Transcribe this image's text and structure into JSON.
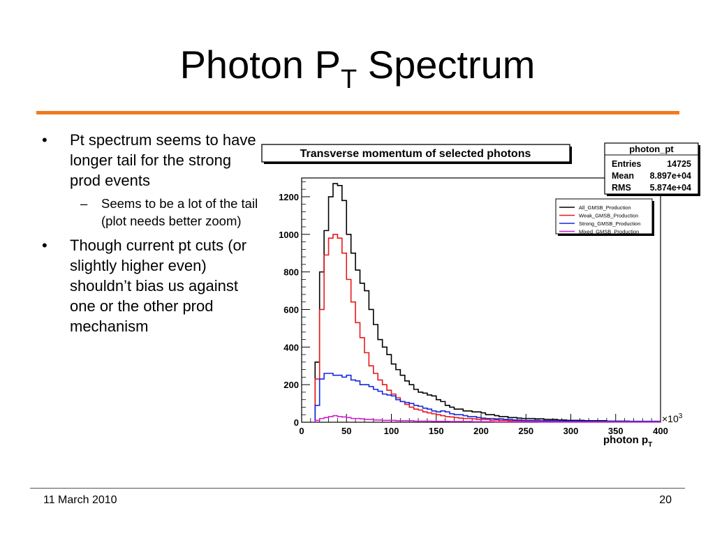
{
  "slide": {
    "title_main": "Photon P",
    "title_sub": "T",
    "title_rest": " Spectrum",
    "bullets": [
      {
        "text": "Pt spectrum seems to have longer tail for the strong prod events",
        "subs": [
          "Seems to be a lot of the tail (plot needs better zoom)"
        ]
      },
      {
        "text": "Though current pt cuts (or slightly higher even) shouldn’t bias us against one or the other prod mechanism",
        "subs": []
      }
    ],
    "footer_date": "11 March 2010",
    "footer_page": "20",
    "accent_color": "#f07a1e"
  },
  "chart_data": {
    "type": "line",
    "title": "Transverse momentum of selected photons",
    "xlabel": "photon p",
    "xlabel_sub": "T",
    "x_multiplier": "×10",
    "x_multiplier_exp": "3",
    "xlim": [
      0,
      400
    ],
    "ylim": [
      0,
      1300
    ],
    "xticks": [
      0,
      50,
      100,
      150,
      200,
      250,
      300,
      350,
      400
    ],
    "yticks": [
      0,
      200,
      400,
      600,
      800,
      1000,
      1200
    ],
    "stats": {
      "name": "photon_pt",
      "rows": [
        {
          "label": "Entries",
          "value": "14725"
        },
        {
          "label": "Mean",
          "value": "8.897e+04"
        },
        {
          "label": "RMS",
          "value": "5.874e+04"
        }
      ]
    },
    "legend_position": "top-right",
    "bin_width": 5,
    "x_start": 15,
    "series": [
      {
        "name": "All_GMSB_Production",
        "color": "#000000",
        "values": [
          320,
          800,
          1020,
          1200,
          1270,
          1260,
          1180,
          1000,
          900,
          810,
          740,
          700,
          600,
          520,
          440,
          400,
          360,
          310,
          280,
          250,
          220,
          200,
          175,
          160,
          155,
          145,
          140,
          120,
          110,
          90,
          80,
          70,
          70,
          60,
          60,
          55,
          55,
          50,
          40,
          40,
          35,
          30,
          30,
          25,
          25,
          22,
          20,
          20,
          20,
          18,
          18,
          15,
          15,
          15,
          12,
          12,
          10,
          10,
          10,
          10,
          8,
          8,
          8,
          8,
          8,
          6,
          6,
          6,
          6,
          6,
          5,
          5,
          5,
          5,
          5,
          5,
          5
        ]
      },
      {
        "name": "Weak_GMSB_Production",
        "color": "#e8181a",
        "values": [
          230,
          600,
          890,
          980,
          1000,
          980,
          900,
          760,
          640,
          530,
          450,
          370,
          300,
          260,
          225,
          200,
          170,
          150,
          130,
          110,
          95,
          80,
          70,
          65,
          55,
          50,
          45,
          40,
          35,
          30,
          28,
          25,
          22,
          20,
          20,
          18,
          15,
          15,
          15,
          12,
          12,
          10,
          10,
          8,
          8,
          8,
          6,
          6,
          6,
          5,
          5,
          5,
          5,
          5,
          5,
          4,
          4,
          4,
          4,
          4,
          3,
          3,
          3,
          3,
          3,
          3,
          3,
          3,
          3,
          2,
          2,
          2,
          2,
          2,
          2,
          2,
          2
        ]
      },
      {
        "name": "Strong_GMSB_Production",
        "color": "#1228e0",
        "values": [
          90,
          230,
          260,
          260,
          250,
          250,
          240,
          250,
          225,
          220,
          200,
          200,
          190,
          175,
          165,
          150,
          145,
          140,
          120,
          110,
          105,
          100,
          90,
          85,
          75,
          70,
          60,
          55,
          60,
          55,
          45,
          40,
          40,
          35,
          30,
          30,
          25,
          22,
          20,
          20,
          18,
          18,
          15,
          15,
          12,
          12,
          10,
          10,
          10,
          10,
          8,
          8,
          8,
          8,
          8,
          6,
          6,
          6,
          6,
          6,
          5,
          5,
          5,
          5,
          5,
          5,
          5,
          4,
          4,
          4,
          4,
          4,
          4,
          4,
          4,
          4,
          4
        ]
      },
      {
        "name": "Mixed_GMSB_Production",
        "color": "#d21ad2",
        "values": [
          10,
          20,
          25,
          30,
          35,
          30,
          28,
          25,
          20,
          20,
          18,
          15,
          15,
          12,
          12,
          10,
          10,
          10,
          8,
          8,
          8,
          8,
          6,
          6,
          6,
          6,
          5,
          5,
          5,
          5,
          4,
          4,
          4,
          4,
          4,
          3,
          3,
          3,
          3,
          3,
          2,
          2,
          2,
          2,
          2,
          2,
          2,
          2,
          2,
          2,
          1,
          1,
          1,
          1,
          1,
          1,
          1,
          1,
          1,
          1,
          1,
          1,
          1,
          1,
          1,
          1,
          1,
          1,
          1,
          1,
          1,
          1,
          1,
          1,
          1,
          1,
          1
        ]
      }
    ]
  }
}
